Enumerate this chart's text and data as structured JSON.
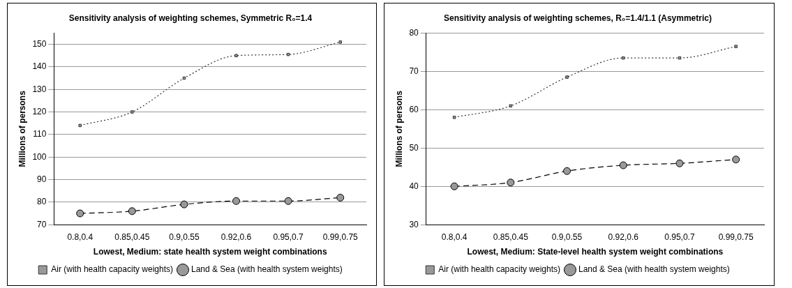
{
  "chart_data": [
    {
      "type": "line",
      "title": "Sensitivity analysis of weighting schemes, Symmetric R₀=1.4",
      "xlabel": "Lowest, Medium: state health system weight combinations",
      "ylabel": "Millions of persons",
      "categories": [
        "0.8,0.4",
        "0.85,0.45",
        "0.9,0.55",
        "0.92,0.6",
        "0.95,0.7",
        "0.99,0.75"
      ],
      "series": [
        {
          "name": "Air (with health capacity weights)",
          "color": "#333333",
          "marker": "square",
          "line_style": "dotted",
          "values": [
            114,
            120,
            135,
            145,
            145.5,
            151
          ]
        },
        {
          "name": "Land & Sea (with health system weights)",
          "color": "#000000",
          "marker": "circle",
          "line_style": "dashed",
          "values": [
            75,
            76,
            79,
            80.5,
            80.5,
            82
          ]
        }
      ],
      "ylim": [
        70,
        155
      ],
      "yticks": [
        70,
        80,
        90,
        100,
        110,
        120,
        130,
        140,
        150
      ],
      "grid": "y",
      "legend": "bottom"
    },
    {
      "type": "line",
      "title": "Sensitivity analysis of weighting schemes, R₀=1.4/1.1 (Asymmetric)",
      "xlabel": "Lowest, Medium: State-level health system weight combinations",
      "ylabel": "Millions of persons",
      "categories": [
        "0.8,0.4",
        "0.85,0.45",
        "0.9,0.55",
        "0.92,0.6",
        "0.95,0.7",
        "0.99,0.75"
      ],
      "series": [
        {
          "name": "Air (with health capacity weights)",
          "color": "#333333",
          "marker": "square",
          "line_style": "dotted",
          "values": [
            58,
            61,
            68.5,
            73.5,
            73.5,
            76.5
          ]
        },
        {
          "name": "Land & Sea (with health system weights)",
          "color": "#000000",
          "marker": "circle",
          "line_style": "dashed",
          "values": [
            40,
            41,
            44,
            45.5,
            46,
            47
          ]
        }
      ],
      "ylim": [
        30,
        80
      ],
      "yticks": [
        30,
        40,
        50,
        60,
        70,
        80
      ],
      "grid": "y",
      "legend": "bottom"
    }
  ]
}
